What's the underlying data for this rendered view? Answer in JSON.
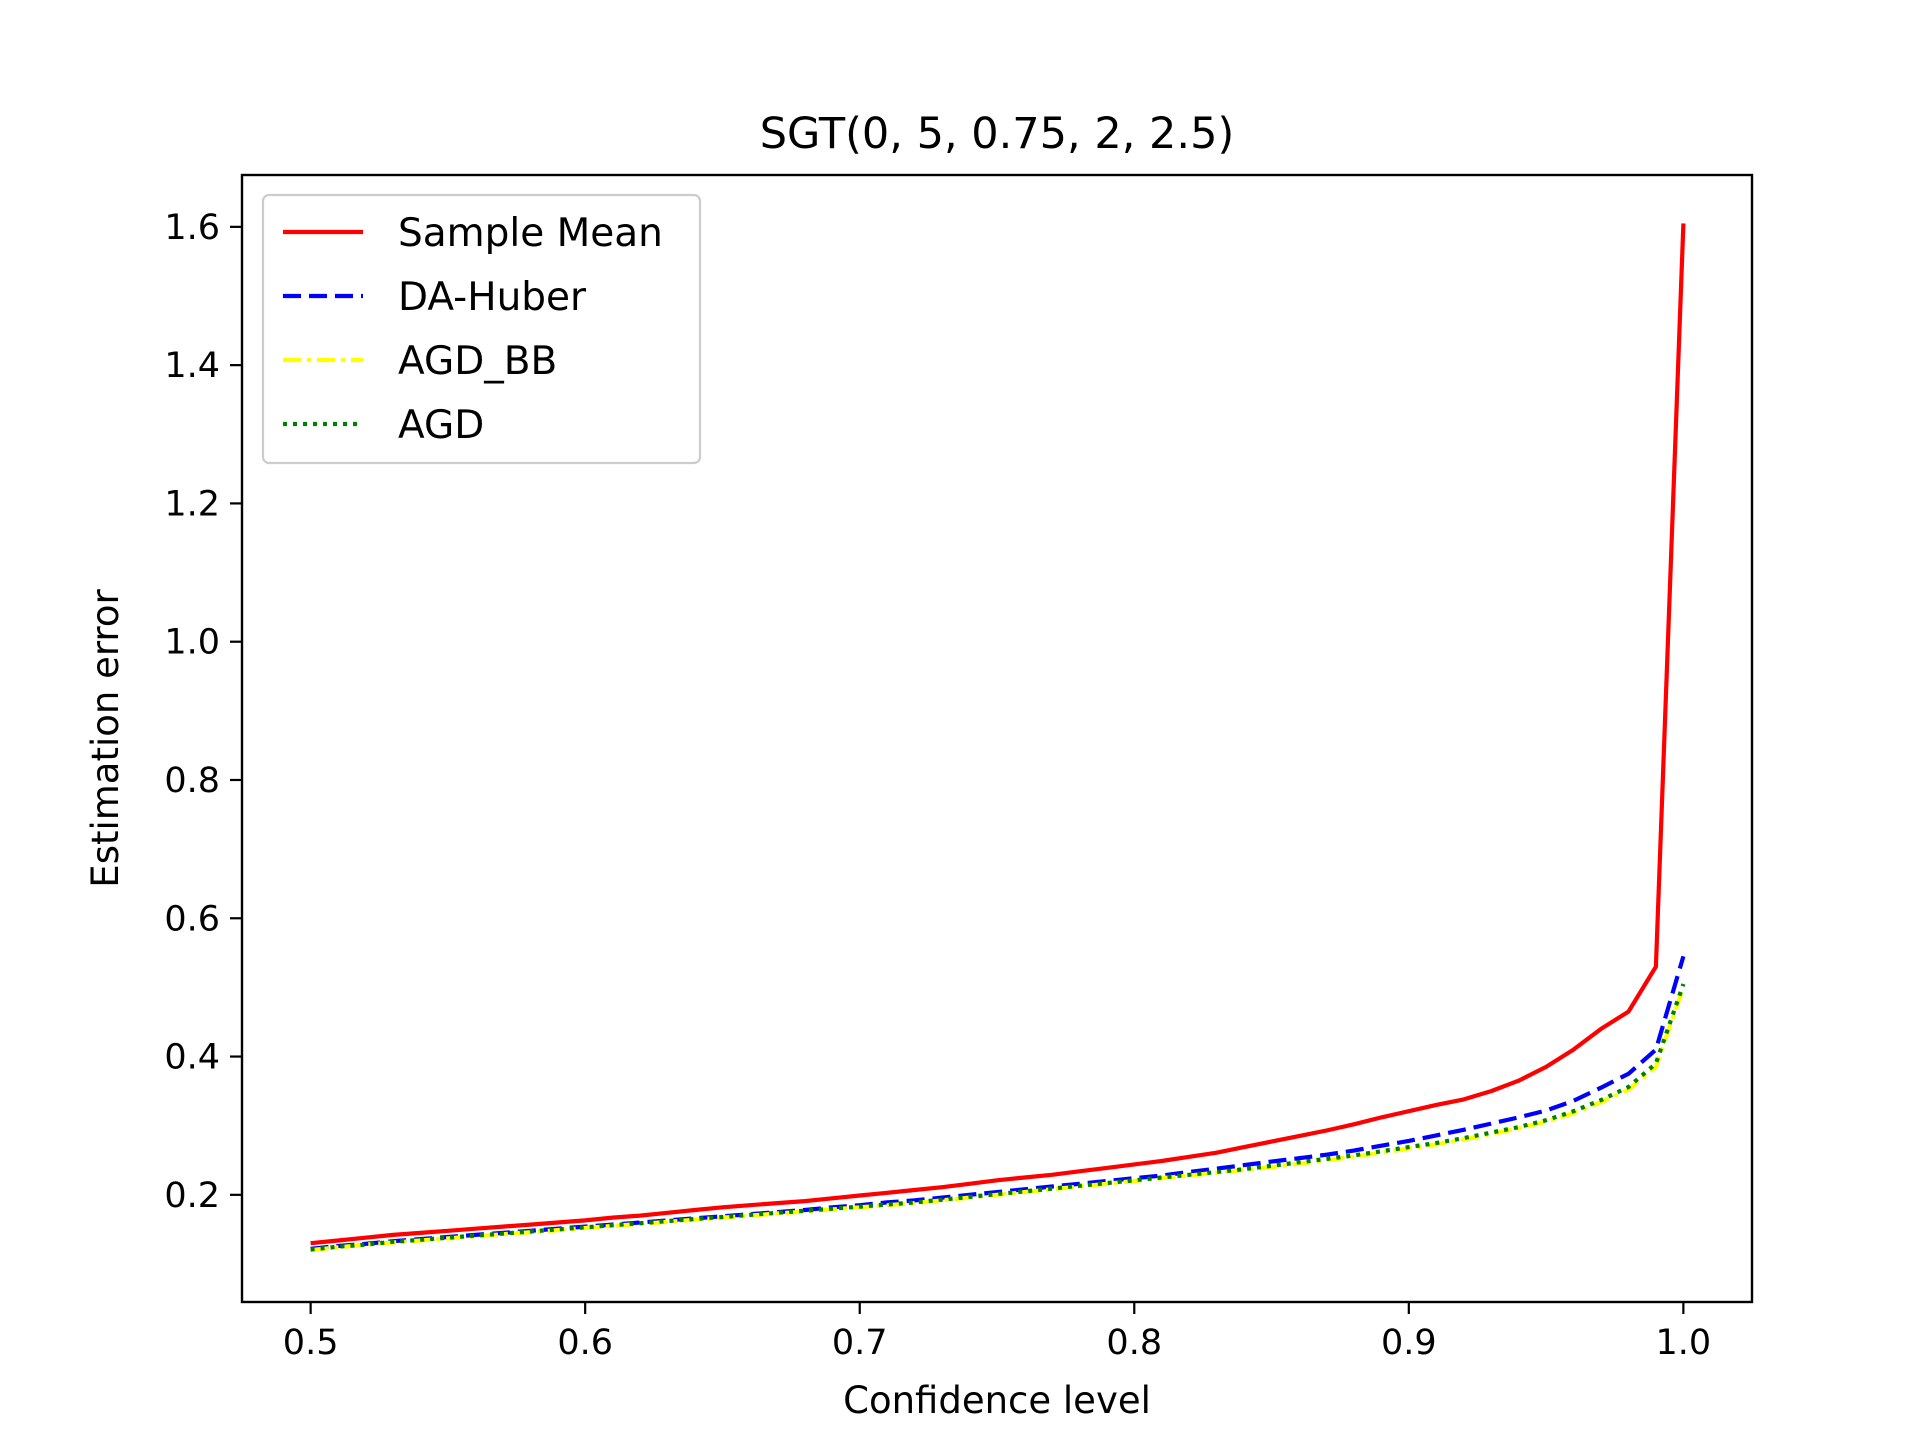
{
  "chart_data": {
    "type": "line",
    "title": "SGT(0, 5, 0.75, 2, 2.5)",
    "xlabel": "Confidence level",
    "ylabel": "Estimation error",
    "xlim": [
      0.475,
      1.025
    ],
    "ylim": [
      0.045,
      1.675
    ],
    "xticks": [
      {
        "value": 0.5,
        "label": "0.5"
      },
      {
        "value": 0.6,
        "label": "0.6"
      },
      {
        "value": 0.7,
        "label": "0.7"
      },
      {
        "value": 0.8,
        "label": "0.8"
      },
      {
        "value": 0.9,
        "label": "0.9"
      },
      {
        "value": 1.0,
        "label": "1.0"
      }
    ],
    "yticks": [
      {
        "value": 0.2,
        "label": "0.2"
      },
      {
        "value": 0.4,
        "label": "0.4"
      },
      {
        "value": 0.6,
        "label": "0.6"
      },
      {
        "value": 0.8,
        "label": "0.8"
      },
      {
        "value": 1.0,
        "label": "1.0"
      },
      {
        "value": 1.2,
        "label": "1.2"
      },
      {
        "value": 1.4,
        "label": "1.4"
      },
      {
        "value": 1.6,
        "label": "1.6"
      }
    ],
    "grid": false,
    "legend_position": "top-left",
    "x": [
      0.5,
      0.51,
      0.52,
      0.53,
      0.54,
      0.55,
      0.56,
      0.57,
      0.58,
      0.59,
      0.6,
      0.61,
      0.62,
      0.63,
      0.64,
      0.65,
      0.66,
      0.67,
      0.68,
      0.69,
      0.7,
      0.71,
      0.72,
      0.73,
      0.74,
      0.75,
      0.76,
      0.77,
      0.78,
      0.79,
      0.8,
      0.81,
      0.82,
      0.83,
      0.84,
      0.85,
      0.86,
      0.87,
      0.88,
      0.89,
      0.9,
      0.91,
      0.92,
      0.93,
      0.94,
      0.95,
      0.96,
      0.97,
      0.98,
      0.99,
      1.0
    ],
    "series": [
      {
        "name": "Sample Mean",
        "color": "#ff0000",
        "style": "solid",
        "values": [
          0.13,
          0.134,
          0.138,
          0.142,
          0.145,
          0.148,
          0.151,
          0.154,
          0.157,
          0.16,
          0.163,
          0.167,
          0.17,
          0.174,
          0.178,
          0.182,
          0.185,
          0.188,
          0.191,
          0.195,
          0.199,
          0.203,
          0.207,
          0.211,
          0.216,
          0.221,
          0.225,
          0.229,
          0.234,
          0.239,
          0.244,
          0.249,
          0.255,
          0.261,
          0.269,
          0.277,
          0.285,
          0.293,
          0.302,
          0.312,
          0.321,
          0.33,
          0.338,
          0.35,
          0.365,
          0.385,
          0.41,
          0.44,
          0.465,
          0.53,
          1.605
        ]
      },
      {
        "name": "DA-Huber",
        "color": "#0000ff",
        "style": "dashed",
        "values": [
          0.122,
          0.126,
          0.129,
          0.133,
          0.136,
          0.139,
          0.142,
          0.145,
          0.148,
          0.151,
          0.154,
          0.157,
          0.16,
          0.163,
          0.166,
          0.169,
          0.172,
          0.175,
          0.178,
          0.182,
          0.185,
          0.189,
          0.192,
          0.196,
          0.2,
          0.204,
          0.208,
          0.212,
          0.216,
          0.22,
          0.224,
          0.228,
          0.233,
          0.238,
          0.243,
          0.248,
          0.253,
          0.258,
          0.264,
          0.271,
          0.278,
          0.286,
          0.294,
          0.303,
          0.312,
          0.322,
          0.336,
          0.355,
          0.375,
          0.41,
          0.545
        ]
      },
      {
        "name": "AGD_BB",
        "color": "#ffff00",
        "style": "dashdot",
        "values": [
          0.12,
          0.124,
          0.128,
          0.131,
          0.134,
          0.137,
          0.14,
          0.143,
          0.146,
          0.149,
          0.152,
          0.155,
          0.158,
          0.161,
          0.164,
          0.167,
          0.17,
          0.173,
          0.176,
          0.179,
          0.182,
          0.185,
          0.188,
          0.192,
          0.196,
          0.2,
          0.204,
          0.208,
          0.212,
          0.216,
          0.22,
          0.224,
          0.228,
          0.232,
          0.236,
          0.24,
          0.245,
          0.25,
          0.255,
          0.261,
          0.267,
          0.273,
          0.28,
          0.288,
          0.296,
          0.306,
          0.318,
          0.334,
          0.352,
          0.385,
          0.5
        ]
      },
      {
        "name": "AGD",
        "color": "#008000",
        "style": "dotted",
        "values": [
          0.121,
          0.125,
          0.128,
          0.132,
          0.135,
          0.138,
          0.141,
          0.144,
          0.147,
          0.15,
          0.153,
          0.156,
          0.159,
          0.162,
          0.165,
          0.168,
          0.171,
          0.174,
          0.177,
          0.18,
          0.183,
          0.186,
          0.189,
          0.193,
          0.197,
          0.201,
          0.205,
          0.209,
          0.213,
          0.217,
          0.221,
          0.225,
          0.229,
          0.233,
          0.237,
          0.242,
          0.247,
          0.252,
          0.257,
          0.263,
          0.269,
          0.275,
          0.282,
          0.29,
          0.298,
          0.308,
          0.321,
          0.337,
          0.356,
          0.39,
          0.505
        ]
      }
    ]
  }
}
